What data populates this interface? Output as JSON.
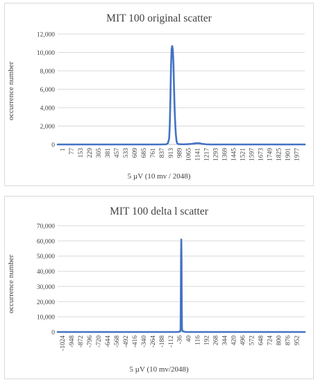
{
  "chart_data": [
    {
      "type": "line",
      "title": "MIT 100 original scatter",
      "xlabel": "5 µV (10 mv / 2048)",
      "ylabel": "occurrence number",
      "ylim": [
        0,
        12000
      ],
      "yticks": [
        "0",
        "2,000",
        "4,000",
        "6,000",
        "8,000",
        "10,000",
        "12,000"
      ],
      "ytick_values": [
        0,
        2000,
        4000,
        6000,
        8000,
        10000,
        12000
      ],
      "xlim": [
        1,
        2048
      ],
      "xticks": [
        "1",
        "77",
        "153",
        "229",
        "305",
        "381",
        "457",
        "533",
        "609",
        "685",
        "761",
        "837",
        "913",
        "989",
        "1065",
        "1141",
        "1217",
        "1293",
        "1369",
        "1445",
        "1521",
        "1597",
        "1673",
        "1749",
        "1825",
        "1901",
        "1977"
      ],
      "grid": "horizontal",
      "color": "#4472c4",
      "x": [
        1,
        850,
        900,
        915,
        925,
        930,
        935,
        940,
        945,
        950,
        955,
        960,
        965,
        970,
        975,
        980,
        985,
        990,
        1000,
        1020,
        1050,
        1080,
        1110,
        1140,
        1160,
        1180,
        1200,
        1230,
        1260,
        1300,
        2048
      ],
      "y": [
        0,
        0,
        20,
        150,
        700,
        2200,
        5000,
        8500,
        10400,
        10700,
        10300,
        8800,
        6200,
        3800,
        2200,
        1100,
        450,
        150,
        40,
        20,
        20,
        30,
        60,
        120,
        150,
        120,
        60,
        20,
        5,
        0,
        0
      ]
    },
    {
      "type": "line",
      "title": "MIT 100 delta l scatter",
      "xlabel": "5 µV (10 mv/2048)",
      "ylabel": "occurrence number",
      "ylim": [
        0,
        70000
      ],
      "yticks": [
        "0",
        "10,000",
        "20,000",
        "30,000",
        "40,000",
        "50,000",
        "60,000",
        "70,000"
      ],
      "ytick_values": [
        0,
        10000,
        20000,
        30000,
        40000,
        50000,
        60000,
        70000
      ],
      "xlim": [
        -1024,
        1023
      ],
      "xticks": [
        "-1024",
        "-948",
        "-872",
        "-796",
        "-720",
        "-644",
        "-568",
        "-492",
        "-416",
        "-340",
        "-264",
        "-188",
        "-112",
        "-36",
        "40",
        "116",
        "192",
        "268",
        "344",
        "420",
        "496",
        "572",
        "648",
        "724",
        "800",
        "876",
        "952"
      ],
      "grid": "horizontal",
      "color": "#4472c4",
      "x": [
        -1024,
        -30,
        -20,
        -10,
        -6,
        -4,
        -2,
        0,
        2,
        4,
        6,
        10,
        20,
        40,
        1023
      ],
      "y": [
        0,
        0,
        100,
        400,
        1500,
        20000,
        50000,
        61000,
        50000,
        15000,
        2000,
        600,
        300,
        0,
        0
      ]
    }
  ]
}
